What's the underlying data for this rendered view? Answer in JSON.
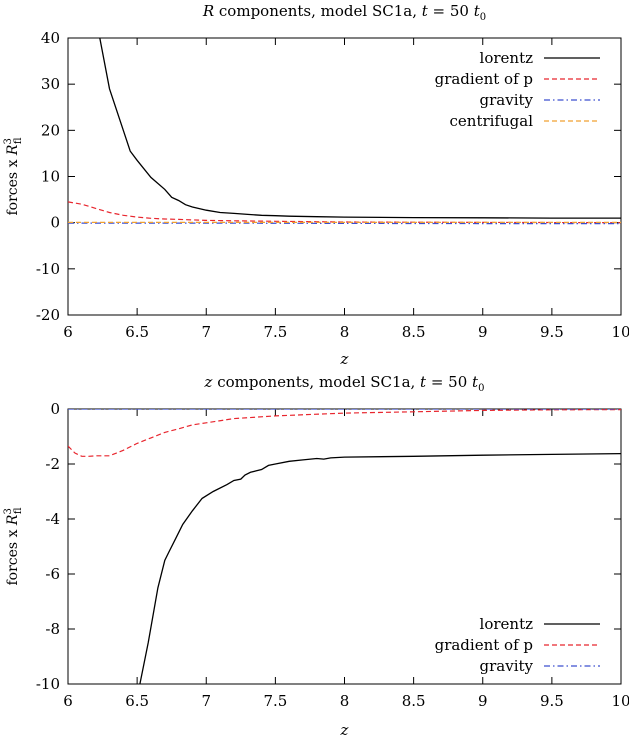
{
  "chart_data": [
    {
      "type": "line",
      "title": "R components, model SC1a, t = 50 t",
      "title_sub": "0",
      "xlabel": "z",
      "ylabel": "forces x R",
      "ylabel_sup": "3",
      "ylabel_sub": "fl",
      "xlim": [
        6,
        10
      ],
      "ylim": [
        -20,
        40
      ],
      "xticks": [
        "6",
        "6.5",
        "7",
        "7.5",
        "8",
        "8.5",
        "9",
        "9.5",
        "10"
      ],
      "yticks": [
        "-20",
        "-10",
        "0",
        "10",
        "20",
        "30",
        "40"
      ],
      "grid": false,
      "legend_position": "top-right",
      "series": [
        {
          "name": "lorentz",
          "color": "#000000",
          "dash": "solid",
          "x": [
            6.23,
            6.3,
            6.4,
            6.45,
            6.5,
            6.6,
            6.7,
            6.75,
            6.8,
            6.85,
            6.9,
            7.0,
            7.1,
            7.2,
            7.3,
            7.4,
            7.5,
            7.6,
            7.8,
            8.0,
            8.5,
            9.0,
            9.5,
            10.0
          ],
          "y": [
            40,
            29,
            20,
            15.5,
            13.5,
            9.8,
            7.2,
            5.5,
            4.8,
            3.9,
            3.4,
            2.7,
            2.2,
            2.0,
            1.8,
            1.6,
            1.5,
            1.4,
            1.3,
            1.2,
            1.1,
            1.05,
            1.0,
            1.0
          ]
        },
        {
          "name": "gradient of p",
          "color": "#e8262e",
          "dash": "dashed",
          "x": [
            6.0,
            6.1,
            6.2,
            6.3,
            6.4,
            6.5,
            6.6,
            6.7,
            6.8,
            6.9,
            7.0,
            7.2,
            7.5,
            8.0,
            8.5,
            9.0,
            10.0
          ],
          "y": [
            4.5,
            4.0,
            3.1,
            2.2,
            1.6,
            1.2,
            0.95,
            0.8,
            0.7,
            0.6,
            0.5,
            0.4,
            0.3,
            0.15,
            0.1,
            0.05,
            0.0
          ]
        },
        {
          "name": "gravity",
          "color": "#3c4fcf",
          "dash": "dashdot",
          "x": [
            6.0,
            7.0,
            8.0,
            9.0,
            10.0
          ],
          "y": [
            -0.1,
            -0.1,
            -0.15,
            -0.2,
            -0.2
          ]
        },
        {
          "name": "centrifugal",
          "color": "#f0a030",
          "dash": "dashed",
          "x": [
            6.0,
            7.0,
            8.0,
            9.0,
            10.0
          ],
          "y": [
            0.05,
            0.05,
            0.05,
            0.05,
            0.05
          ]
        }
      ]
    },
    {
      "type": "line",
      "title": "z components, model SC1a, t = 50 t",
      "title_sub": "0",
      "xlabel": "z",
      "ylabel": "forces x R",
      "ylabel_sup": "3",
      "ylabel_sub": "fl",
      "xlim": [
        6,
        10
      ],
      "ylim": [
        -10,
        0
      ],
      "xticks": [
        "6",
        "6.5",
        "7",
        "7.5",
        "8",
        "8.5",
        "9",
        "9.5",
        "10"
      ],
      "yticks": [
        "-10",
        "-8",
        "-6",
        "-4",
        "-2",
        "0"
      ],
      "grid": false,
      "legend_position": "bottom-right",
      "series": [
        {
          "name": "lorentz",
          "color": "#000000",
          "dash": "solid",
          "x": [
            6.52,
            6.58,
            6.65,
            6.7,
            6.73,
            6.78,
            6.83,
            6.9,
            6.97,
            7.05,
            7.15,
            7.2,
            7.25,
            7.28,
            7.32,
            7.36,
            7.4,
            7.45,
            7.5,
            7.6,
            7.7,
            7.8,
            7.85,
            7.9,
            8.0,
            8.5,
            9.0,
            9.5,
            10.0
          ],
          "y": [
            -10,
            -8.5,
            -6.5,
            -5.5,
            -5.2,
            -4.7,
            -4.2,
            -3.7,
            -3.25,
            -3.0,
            -2.75,
            -2.6,
            -2.55,
            -2.4,
            -2.3,
            -2.25,
            -2.2,
            -2.05,
            -2.0,
            -1.9,
            -1.85,
            -1.8,
            -1.82,
            -1.78,
            -1.75,
            -1.72,
            -1.68,
            -1.65,
            -1.62
          ]
        },
        {
          "name": "gradient of p",
          "color": "#e8262e",
          "dash": "dashed",
          "x": [
            6.0,
            6.05,
            6.1,
            6.15,
            6.2,
            6.3,
            6.4,
            6.5,
            6.6,
            6.7,
            6.8,
            6.9,
            7.0,
            7.2,
            7.5,
            8.0,
            8.5,
            9.0,
            9.5,
            10.0
          ],
          "y": [
            -1.35,
            -1.6,
            -1.72,
            -1.72,
            -1.7,
            -1.7,
            -1.5,
            -1.25,
            -1.05,
            -0.85,
            -0.72,
            -0.58,
            -0.5,
            -0.35,
            -0.25,
            -0.15,
            -0.1,
            -0.05,
            -0.03,
            -0.02
          ]
        },
        {
          "name": "gravity",
          "color": "#3c4fcf",
          "dash": "dashdot",
          "x": [
            6.0,
            7.0,
            8.0,
            9.0,
            10.0
          ],
          "y": [
            0.0,
            0.0,
            0.0,
            0.0,
            0.0
          ]
        }
      ]
    }
  ]
}
